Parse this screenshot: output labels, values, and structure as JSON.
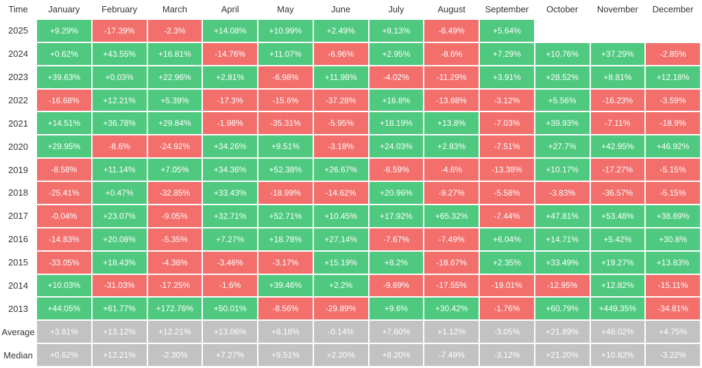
{
  "table": {
    "header": [
      "Time",
      "January",
      "February",
      "March",
      "April",
      "May",
      "June",
      "July",
      "August",
      "September",
      "October",
      "November",
      "December"
    ],
    "rows": [
      [
        "2025",
        "+9.29%",
        "-17.39%",
        "-2.3%",
        "+14.08%",
        "+10.99%",
        "+2.49%",
        "+8.13%",
        "-6.49%",
        "+5.64%"
      ],
      [
        "2024",
        "+0.62%",
        "+43.55%",
        "+16.81%",
        "-14.76%",
        "+11.07%",
        "-6.96%",
        "+2.95%",
        "-8.6%",
        "+7.29%",
        "+10.76%",
        "+37.29%",
        "-2.85%"
      ],
      [
        "2023",
        "+39.63%",
        "+0.03%",
        "+22.96%",
        "+2.81%",
        "-6.98%",
        "+11.98%",
        "-4.02%",
        "-11.29%",
        "+3.91%",
        "+28.52%",
        "+8.81%",
        "+12.18%"
      ],
      [
        "2022",
        "-16.68%",
        "+12.21%",
        "+5.39%",
        "-17.3%",
        "-15.6%",
        "-37.28%",
        "+16.8%",
        "-13.88%",
        "-3.12%",
        "+5.56%",
        "-16.23%",
        "-3.59%"
      ],
      [
        "2021",
        "+14.51%",
        "+36.78%",
        "+29.84%",
        "-1.98%",
        "-35.31%",
        "-5.95%",
        "+18.19%",
        "+13.8%",
        "-7.03%",
        "+39.93%",
        "-7.11%",
        "-18.9%"
      ],
      [
        "2020",
        "+29.95%",
        "-8.6%",
        "-24.92%",
        "+34.26%",
        "+9.51%",
        "-3.18%",
        "+24.03%",
        "+2.83%",
        "-7.51%",
        "+27.7%",
        "+42.95%",
        "+46.92%"
      ],
      [
        "2019",
        "-8.58%",
        "+11.14%",
        "+7.05%",
        "+34.36%",
        "+52.38%",
        "+26.67%",
        "-6.59%",
        "-4.6%",
        "-13.38%",
        "+10.17%",
        "-17.27%",
        "-5.15%"
      ],
      [
        "2018",
        "-25.41%",
        "+0.47%",
        "-32.85%",
        "+33.43%",
        "-18.99%",
        "-14.62%",
        "+20.96%",
        "-9.27%",
        "-5.58%",
        "-3.83%",
        "-36.57%",
        "-5.15%"
      ],
      [
        "2017",
        "-0.04%",
        "+23.07%",
        "-9.05%",
        "+32.71%",
        "+52.71%",
        "+10.45%",
        "+17.92%",
        "+65.32%",
        "-7.44%",
        "+47.81%",
        "+53.48%",
        "+38.89%"
      ],
      [
        "2016",
        "-14.83%",
        "+20.08%",
        "-5.35%",
        "+7.27%",
        "+18.78%",
        "+27.14%",
        "-7.67%",
        "-7.49%",
        "+6.04%",
        "+14.71%",
        "+5.42%",
        "+30.8%"
      ],
      [
        "2015",
        "-33.05%",
        "+18.43%",
        "-4.38%",
        "-3.46%",
        "-3.17%",
        "+15.19%",
        "+8.2%",
        "-18.67%",
        "+2.35%",
        "+33.49%",
        "+19.27%",
        "+13.83%"
      ],
      [
        "2014",
        "+10.03%",
        "-31.03%",
        "-17.25%",
        "-1.6%",
        "+39.46%",
        "+2.2%",
        "-9.69%",
        "-17.55%",
        "-19.01%",
        "-12.95%",
        "+12.82%",
        "-15.11%"
      ],
      [
        "2013",
        "+44.05%",
        "+61.77%",
        "+172.76%",
        "+50.01%",
        "-8.56%",
        "-29.89%",
        "+9.6%",
        "+30.42%",
        "-1.76%",
        "+60.79%",
        "+449.35%",
        "-34.81%"
      ]
    ],
    "summary_rows": [
      [
        "Average",
        "+3.81%",
        "+13.12%",
        "+12.21%",
        "+13.06%",
        "+8.18%",
        "-0.14%",
        "+7.60%",
        "+1.12%",
        "-3.05%",
        "+21.89%",
        "+46.02%",
        "+4.75%"
      ],
      [
        "Median",
        "+0.62%",
        "+12.21%",
        "-2.30%",
        "+7.27%",
        "+9.51%",
        "+2.20%",
        "+8.20%",
        "-7.49%",
        "-3.12%",
        "+21.20%",
        "+10.82%",
        "-3.22%"
      ]
    ]
  },
  "colors": {
    "up": "#4fc97f",
    "down": "#f26f6c",
    "summary": "#c2c2c2"
  }
}
